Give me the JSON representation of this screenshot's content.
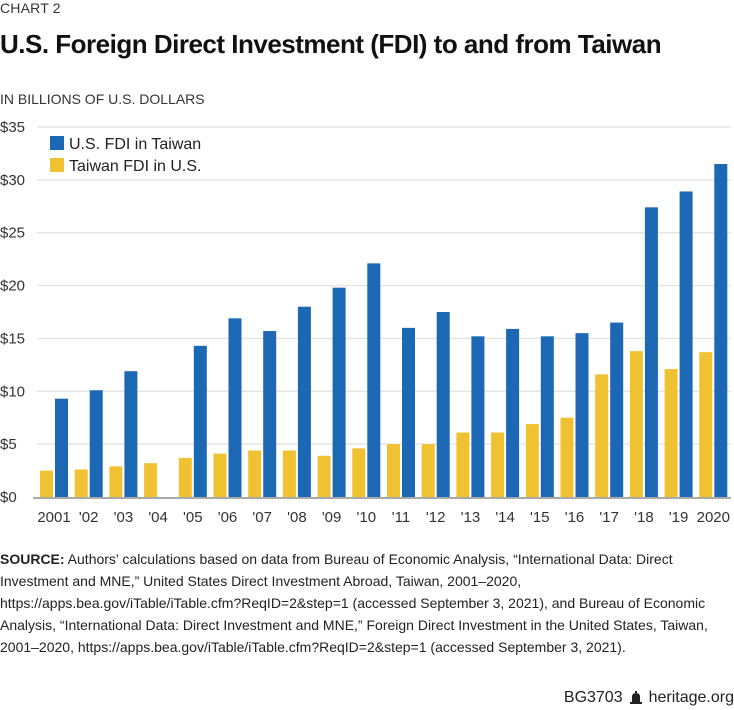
{
  "header": {
    "eyebrow": "CHART 2",
    "title": "U.S. Foreign Direct Investment (FDI) to and from Taiwan",
    "units": "IN BILLIONS OF U.S. DOLLARS"
  },
  "chart_data": {
    "type": "bar",
    "title": "U.S. Foreign Direct Investment (FDI) to and from Taiwan",
    "ylabel": "IN BILLIONS OF U.S. DOLLARS",
    "xlabel": "",
    "ylim": [
      0,
      35
    ],
    "yticks": [
      0,
      5,
      10,
      15,
      20,
      25,
      30,
      35
    ],
    "ytick_labels": [
      "$0",
      "$5",
      "$10",
      "$15",
      "$20",
      "$25",
      "$30",
      "$35"
    ],
    "grid": true,
    "legend_position": "top-left",
    "categories": [
      "2001",
      "'02",
      "'03",
      "'04",
      "'05",
      "'06",
      "'07",
      "'08",
      "'09",
      "'10",
      "'11",
      "'12",
      "'13",
      "'14",
      "'15",
      "'16",
      "'17",
      "'18",
      "'19",
      "2020"
    ],
    "series": [
      {
        "name": "Taiwan FDI in U.S.",
        "color": "#f0c232",
        "values": [
          2.5,
          2.6,
          2.9,
          3.2,
          3.7,
          4.1,
          4.4,
          4.4,
          3.9,
          4.6,
          5.0,
          5.0,
          6.1,
          6.1,
          6.9,
          7.5,
          11.6,
          13.8,
          12.1,
          13.7
        ]
      },
      {
        "name": "U.S. FDI in Taiwan",
        "color": "#1c68b5",
        "values": [
          9.3,
          10.1,
          11.9,
          null,
          14.3,
          16.9,
          15.7,
          18.0,
          19.8,
          22.1,
          16.0,
          17.5,
          15.2,
          15.9,
          15.2,
          15.5,
          16.5,
          27.4,
          28.9,
          31.5
        ]
      }
    ],
    "legend": [
      "U.S. FDI in Taiwan",
      "Taiwan FDI in U.S."
    ]
  },
  "source": {
    "label": "SOURCE:",
    "text": " Authors’ calculations based on data from Bureau of Economic Analysis, “International Data: Direct Investment and MNE,” United States Direct Investment Abroad, Taiwan, 2001–2020, https://apps.bea.gov/iTable/iTable.cfm?ReqID=2&step=1 (accessed September 3, 2021), and Bureau of Economic Analysis, “International Data: Direct Investment and MNE,” Foreign Direct Investment in the United States, Taiwan, 2001–2020, https://apps.bea.gov/iTable/iTable.cfm?ReqID=2&step=1 (accessed September 3, 2021)."
  },
  "footer": {
    "code": "BG3703",
    "icon": "liberty-bell-icon",
    "site": "heritage.org"
  },
  "colors": {
    "blue": "#1c68b5",
    "yellow": "#f0c232",
    "grid": "#e6e6e6",
    "axis": "#aaaaaa"
  }
}
